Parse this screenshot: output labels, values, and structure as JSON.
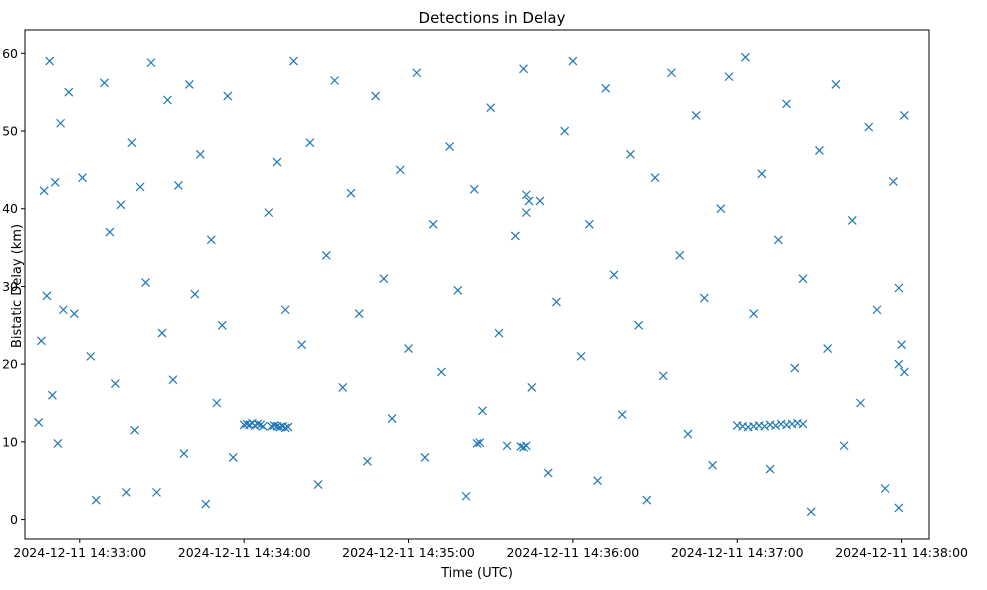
{
  "chart_data": {
    "type": "scatter",
    "title": "Detections in Delay",
    "xlabel": "Time (UTC)",
    "ylabel": "Bistatic Delay (km)",
    "x_type": "datetime",
    "xlim": [
      "2024-12-11 14:32:40",
      "2024-12-11 14:38:10"
    ],
    "ylim": [
      -2.5,
      63
    ],
    "x_ticks": [
      "2024-12-11 14:33:00",
      "2024-12-11 14:34:00",
      "2024-12-11 14:35:00",
      "2024-12-11 14:36:00",
      "2024-12-11 14:37:00",
      "2024-12-11 14:38:00"
    ],
    "y_ticks": [
      0,
      10,
      20,
      30,
      40,
      50,
      60
    ],
    "grid": false,
    "legend": "none",
    "marker": "x",
    "color": "#1f77b4",
    "series": [
      {
        "points": [
          [
            "2024-12-11 14:32:45",
            12.5
          ],
          [
            "2024-12-11 14:32:46",
            23.0
          ],
          [
            "2024-12-11 14:32:47",
            42.3
          ],
          [
            "2024-12-11 14:32:48",
            28.8
          ],
          [
            "2024-12-11 14:32:49",
            59.0
          ],
          [
            "2024-12-11 14:32:50",
            16.0
          ],
          [
            "2024-12-11 14:32:51",
            43.4
          ],
          [
            "2024-12-11 14:32:52",
            9.8
          ],
          [
            "2024-12-11 14:32:53",
            51.0
          ],
          [
            "2024-12-11 14:32:54",
            27.0
          ],
          [
            "2024-12-11 14:32:56",
            55.0
          ],
          [
            "2024-12-11 14:32:58",
            26.5
          ],
          [
            "2024-12-11 14:33:01",
            44.0
          ],
          [
            "2024-12-11 14:33:04",
            21.0
          ],
          [
            "2024-12-11 14:33:06",
            2.5
          ],
          [
            "2024-12-11 14:33:09",
            56.2
          ],
          [
            "2024-12-11 14:33:11",
            37.0
          ],
          [
            "2024-12-11 14:33:13",
            17.5
          ],
          [
            "2024-12-11 14:33:15",
            40.5
          ],
          [
            "2024-12-11 14:33:17",
            3.5
          ],
          [
            "2024-12-11 14:33:19",
            48.5
          ],
          [
            "2024-12-11 14:33:20",
            11.5
          ],
          [
            "2024-12-11 14:33:22",
            42.8
          ],
          [
            "2024-12-11 14:33:24",
            30.5
          ],
          [
            "2024-12-11 14:33:26",
            58.8
          ],
          [
            "2024-12-11 14:33:28",
            3.5
          ],
          [
            "2024-12-11 14:33:30",
            24.0
          ],
          [
            "2024-12-11 14:33:32",
            54.0
          ],
          [
            "2024-12-11 14:33:34",
            18.0
          ],
          [
            "2024-12-11 14:33:36",
            43.0
          ],
          [
            "2024-12-11 14:33:38",
            8.5
          ],
          [
            "2024-12-11 14:33:40",
            56.0
          ],
          [
            "2024-12-11 14:33:42",
            29.0
          ],
          [
            "2024-12-11 14:33:44",
            47.0
          ],
          [
            "2024-12-11 14:33:46",
            2.0
          ],
          [
            "2024-12-11 14:33:48",
            36.0
          ],
          [
            "2024-12-11 14:33:50",
            15.0
          ],
          [
            "2024-12-11 14:33:52",
            25.0
          ],
          [
            "2024-12-11 14:33:54",
            54.5
          ],
          [
            "2024-12-11 14:33:56",
            8.0
          ],
          [
            "2024-12-11 14:34:00",
            12.2
          ],
          [
            "2024-12-11 14:34:01",
            12.3
          ],
          [
            "2024-12-11 14:34:02",
            12.2
          ],
          [
            "2024-12-11 14:34:03",
            12.4
          ],
          [
            "2024-12-11 14:34:04",
            12.1
          ],
          [
            "2024-12-11 14:34:05",
            12.3
          ],
          [
            "2024-12-11 14:34:06",
            12.2
          ],
          [
            "2024-12-11 14:34:07",
            12.0
          ],
          [
            "2024-12-11 14:34:10",
            12.0
          ],
          [
            "2024-12-11 14:34:11",
            12.1
          ],
          [
            "2024-12-11 14:34:12",
            12.0
          ],
          [
            "2024-12-11 14:34:13",
            11.9
          ],
          [
            "2024-12-11 14:34:14",
            12.0
          ],
          [
            "2024-12-11 14:34:15",
            11.8
          ],
          [
            "2024-12-11 14:34:16",
            11.9
          ],
          [
            "2024-12-11 14:34:09",
            39.5
          ],
          [
            "2024-12-11 14:34:12",
            46.0
          ],
          [
            "2024-12-11 14:34:15",
            27.0
          ],
          [
            "2024-12-11 14:34:18",
            59.0
          ],
          [
            "2024-12-11 14:34:21",
            22.5
          ],
          [
            "2024-12-11 14:34:24",
            48.5
          ],
          [
            "2024-12-11 14:34:27",
            4.5
          ],
          [
            "2024-12-11 14:34:30",
            34.0
          ],
          [
            "2024-12-11 14:34:33",
            56.5
          ],
          [
            "2024-12-11 14:34:36",
            17.0
          ],
          [
            "2024-12-11 14:34:39",
            42.0
          ],
          [
            "2024-12-11 14:34:42",
            26.5
          ],
          [
            "2024-12-11 14:34:45",
            7.5
          ],
          [
            "2024-12-11 14:34:48",
            54.5
          ],
          [
            "2024-12-11 14:34:51",
            31.0
          ],
          [
            "2024-12-11 14:34:54",
            13.0
          ],
          [
            "2024-12-11 14:34:57",
            45.0
          ],
          [
            "2024-12-11 14:35:00",
            22.0
          ],
          [
            "2024-12-11 14:35:03",
            57.5
          ],
          [
            "2024-12-11 14:35:06",
            8.0
          ],
          [
            "2024-12-11 14:35:09",
            38.0
          ],
          [
            "2024-12-11 14:35:12",
            19.0
          ],
          [
            "2024-12-11 14:35:15",
            48.0
          ],
          [
            "2024-12-11 14:35:18",
            29.5
          ],
          [
            "2024-12-11 14:35:21",
            3.0
          ],
          [
            "2024-12-11 14:35:24",
            42.5
          ],
          [
            "2024-12-11 14:35:27",
            14.0
          ],
          [
            "2024-12-11 14:35:30",
            53.0
          ],
          [
            "2024-12-11 14:35:33",
            24.0
          ],
          [
            "2024-12-11 14:35:36",
            9.5
          ],
          [
            "2024-12-11 14:35:39",
            36.5
          ],
          [
            "2024-12-11 14:35:42",
            58.0
          ],
          [
            "2024-12-11 14:35:45",
            17.0
          ],
          [
            "2024-12-11 14:35:48",
            41.0
          ],
          [
            "2024-12-11 14:35:51",
            6.0
          ],
          [
            "2024-12-11 14:35:54",
            28.0
          ],
          [
            "2024-12-11 14:35:57",
            50.0
          ],
          [
            "2024-12-11 14:35:25",
            9.8
          ],
          [
            "2024-12-11 14:35:26",
            9.9
          ],
          [
            "2024-12-11 14:35:41",
            9.4
          ],
          [
            "2024-12-11 14:35:42",
            9.3
          ],
          [
            "2024-12-11 14:35:43",
            9.5
          ],
          [
            "2024-12-11 14:35:43",
            41.8
          ],
          [
            "2024-12-11 14:35:44",
            41.0
          ],
          [
            "2024-12-11 14:35:43",
            39.5
          ],
          [
            "2024-12-11 14:36:00",
            59.0
          ],
          [
            "2024-12-11 14:36:03",
            21.0
          ],
          [
            "2024-12-11 14:36:06",
            38.0
          ],
          [
            "2024-12-11 14:36:09",
            5.0
          ],
          [
            "2024-12-11 14:36:12",
            55.5
          ],
          [
            "2024-12-11 14:36:15",
            31.5
          ],
          [
            "2024-12-11 14:36:18",
            13.5
          ],
          [
            "2024-12-11 14:36:21",
            47.0
          ],
          [
            "2024-12-11 14:36:24",
            25.0
          ],
          [
            "2024-12-11 14:36:27",
            2.5
          ],
          [
            "2024-12-11 14:36:30",
            44.0
          ],
          [
            "2024-12-11 14:36:33",
            18.5
          ],
          [
            "2024-12-11 14:36:36",
            57.5
          ],
          [
            "2024-12-11 14:36:39",
            34.0
          ],
          [
            "2024-12-11 14:36:42",
            11.0
          ],
          [
            "2024-12-11 14:36:45",
            52.0
          ],
          [
            "2024-12-11 14:36:48",
            28.5
          ],
          [
            "2024-12-11 14:36:51",
            7.0
          ],
          [
            "2024-12-11 14:36:54",
            40.0
          ],
          [
            "2024-12-11 14:36:57",
            57.0
          ],
          [
            "2024-12-11 14:37:00",
            12.1
          ],
          [
            "2024-12-11 14:37:02",
            12.0
          ],
          [
            "2024-12-11 14:37:04",
            11.9
          ],
          [
            "2024-12-11 14:37:06",
            12.0
          ],
          [
            "2024-12-11 14:37:08",
            12.1
          ],
          [
            "2024-12-11 14:37:10",
            12.0
          ],
          [
            "2024-12-11 14:37:12",
            12.2
          ],
          [
            "2024-12-11 14:37:14",
            12.1
          ],
          [
            "2024-12-11 14:37:16",
            12.3
          ],
          [
            "2024-12-11 14:37:18",
            12.2
          ],
          [
            "2024-12-11 14:37:20",
            12.3
          ],
          [
            "2024-12-11 14:37:22",
            12.4
          ],
          [
            "2024-12-11 14:37:24",
            12.3
          ],
          [
            "2024-12-11 14:37:03",
            59.5
          ],
          [
            "2024-12-11 14:37:06",
            26.5
          ],
          [
            "2024-12-11 14:37:09",
            44.5
          ],
          [
            "2024-12-11 14:37:12",
            6.5
          ],
          [
            "2024-12-11 14:37:15",
            36.0
          ],
          [
            "2024-12-11 14:37:18",
            53.5
          ],
          [
            "2024-12-11 14:37:21",
            19.5
          ],
          [
            "2024-12-11 14:37:24",
            31.0
          ],
          [
            "2024-12-11 14:37:27",
            1.0
          ],
          [
            "2024-12-11 14:37:30",
            47.5
          ],
          [
            "2024-12-11 14:37:33",
            22.0
          ],
          [
            "2024-12-11 14:37:36",
            56.0
          ],
          [
            "2024-12-11 14:37:39",
            9.5
          ],
          [
            "2024-12-11 14:37:42",
            38.5
          ],
          [
            "2024-12-11 14:37:45",
            15.0
          ],
          [
            "2024-12-11 14:37:48",
            50.5
          ],
          [
            "2024-12-11 14:37:51",
            27.0
          ],
          [
            "2024-12-11 14:37:54",
            4.0
          ],
          [
            "2024-12-11 14:37:57",
            43.5
          ],
          [
            "2024-12-11 14:37:59",
            20.0
          ],
          [
            "2024-12-11 14:37:59",
            1.5
          ],
          [
            "2024-12-11 14:38:01",
            52.0
          ],
          [
            "2024-12-11 14:38:00",
            22.5
          ],
          [
            "2024-12-11 14:38:01",
            19.0
          ],
          [
            "2024-12-11 14:37:59",
            29.8
          ]
        ]
      }
    ]
  }
}
